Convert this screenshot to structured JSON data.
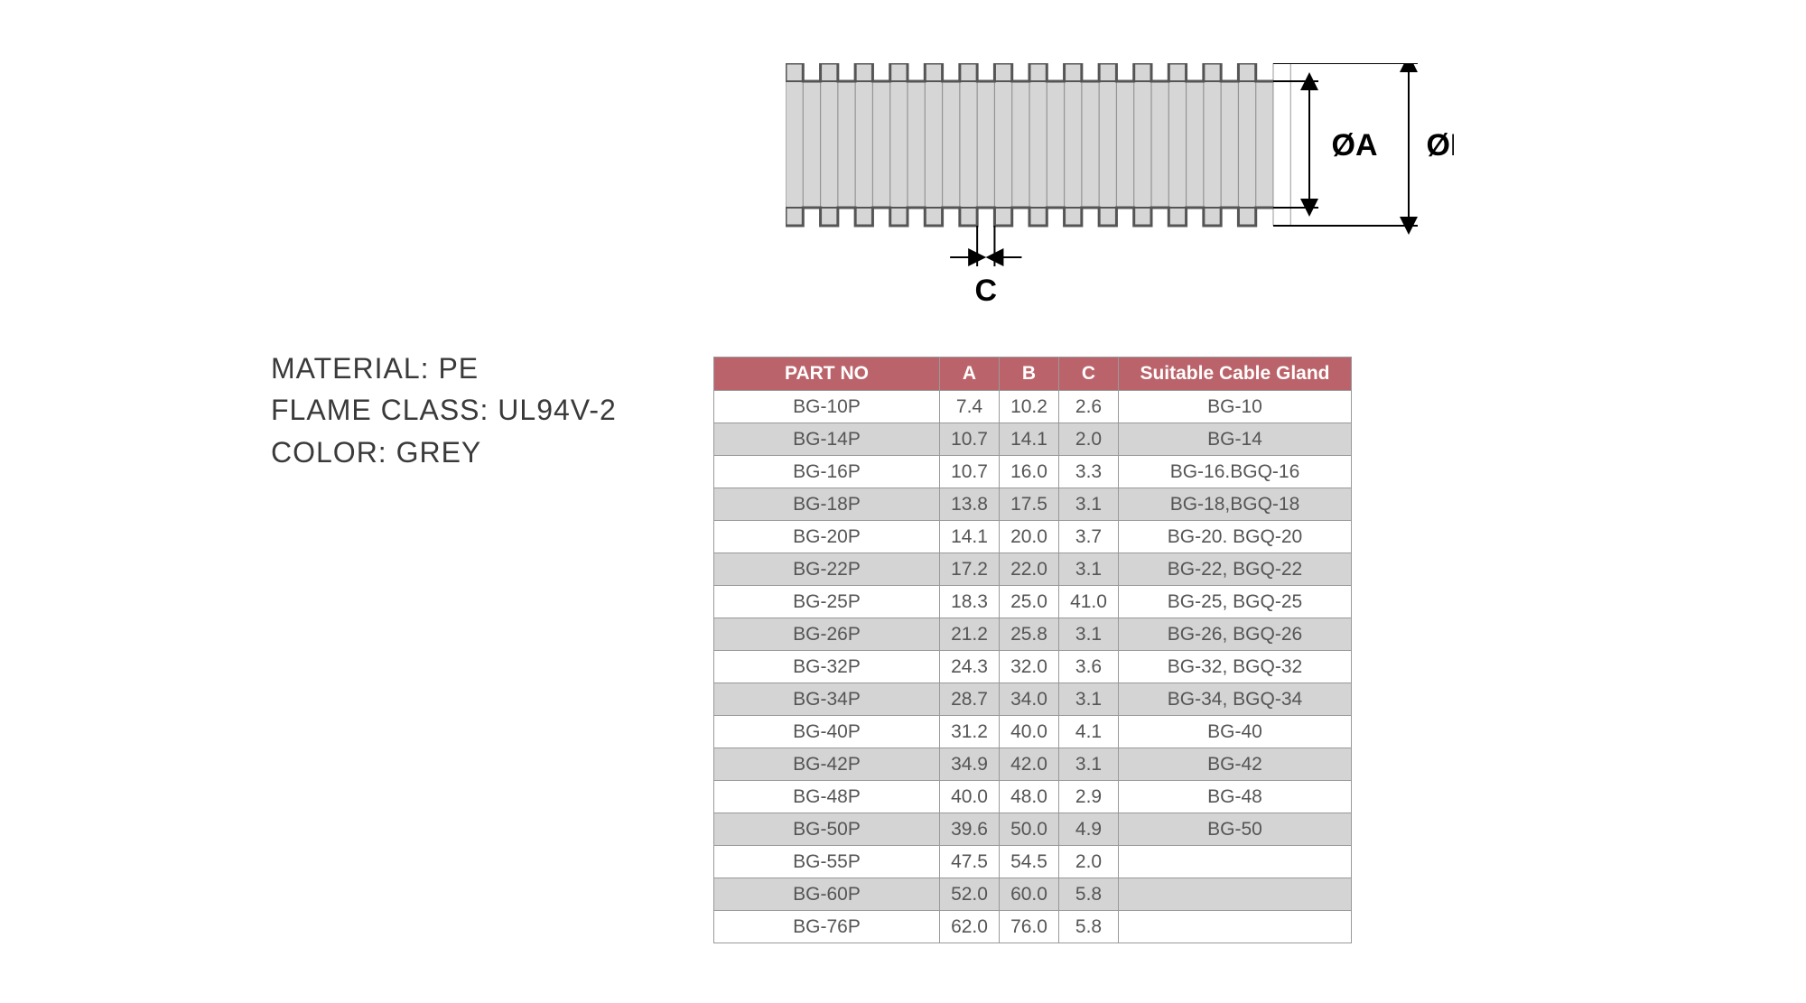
{
  "specs": {
    "material_label": "MATERIAL:",
    "material_value": "PE",
    "flame_label": "FLAME CLASS:",
    "flame_value": "UL94V-2",
    "color_label": "COLOR:",
    "color_value": "GREY"
  },
  "diagram": {
    "label_a": "ØA",
    "label_b": "ØB",
    "label_c": "C",
    "tube_fill": "#d6d6d6",
    "tube_stroke": "#555555",
    "dim_stroke": "#000000",
    "rib_count": 14
  },
  "table": {
    "header_bg": "#bb636a",
    "header_fg": "#ffffff",
    "row_alt_bg": "#d4d4d4",
    "border_color": "#999999",
    "columns": [
      "PART NO",
      "A",
      "B",
      "C",
      "Suitable Cable Gland"
    ],
    "rows": [
      [
        "BG-10P",
        "7.4",
        "10.2",
        "2.6",
        "BG-10"
      ],
      [
        "BG-14P",
        "10.7",
        "14.1",
        "2.0",
        "BG-14"
      ],
      [
        "BG-16P",
        "10.7",
        "16.0",
        "3.3",
        "BG-16.BGQ-16"
      ],
      [
        "BG-18P",
        "13.8",
        "17.5",
        "3.1",
        "BG-18,BGQ-18"
      ],
      [
        "BG-20P",
        "14.1",
        "20.0",
        "3.7",
        "BG-20. BGQ-20"
      ],
      [
        "BG-22P",
        "17.2",
        "22.0",
        "3.1",
        "BG-22, BGQ-22"
      ],
      [
        "BG-25P",
        "18.3",
        "25.0",
        "41.0",
        "BG-25, BGQ-25"
      ],
      [
        "BG-26P",
        "21.2",
        "25.8",
        "3.1",
        "BG-26, BGQ-26"
      ],
      [
        "BG-32P",
        "24.3",
        "32.0",
        "3.6",
        "BG-32, BGQ-32"
      ],
      [
        "BG-34P",
        "28.7",
        "34.0",
        "3.1",
        "BG-34, BGQ-34"
      ],
      [
        "BG-40P",
        "31.2",
        "40.0",
        "4.1",
        "BG-40"
      ],
      [
        "BG-42P",
        "34.9",
        "42.0",
        "3.1",
        "BG-42"
      ],
      [
        "BG-48P",
        "40.0",
        "48.0",
        "2.9",
        "BG-48"
      ],
      [
        "BG-50P",
        "39.6",
        "50.0",
        "4.9",
        "BG-50"
      ],
      [
        "BG-55P",
        "47.5",
        "54.5",
        "2.0",
        ""
      ],
      [
        "BG-60P",
        "52.0",
        "60.0",
        "5.8",
        ""
      ],
      [
        "BG-76P",
        "62.0",
        "76.0",
        "5.8",
        ""
      ]
    ]
  }
}
